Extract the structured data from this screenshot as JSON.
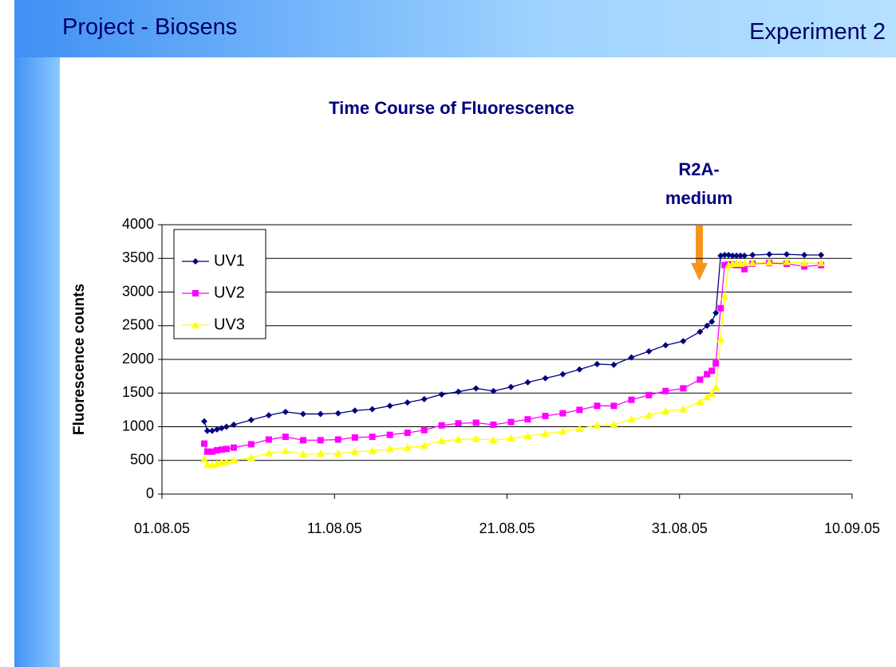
{
  "header": {
    "title": "Project - Biosens",
    "subtitle": "Experiment 2"
  },
  "chart_data": {
    "type": "line",
    "title": "Time Course of Fluorescence",
    "y_label": "Fluorescence counts",
    "annotation": [
      "R2A-",
      "medium"
    ],
    "x": [
      2.45,
      2.63,
      2.91,
      3.19,
      3.46,
      3.74,
      4.16,
      5.17,
      6.19,
      7.16,
      8.18,
      9.19,
      10.21,
      11.18,
      12.19,
      13.21,
      14.23,
      15.2,
      16.21,
      17.18,
      18.2,
      19.21,
      20.23,
      21.2,
      22.22,
      23.23,
      24.2,
      25.22,
      26.19,
      27.21,
      28.22,
      29.19,
      30.21,
      31.18,
      31.59,
      31.87,
      32.1,
      32.38,
      32.61,
      32.84,
      33.07,
      33.3,
      33.53,
      33.76,
      34.23,
      35.2,
      36.21,
      37.23,
      38.2
    ],
    "series": [
      {
        "name": "UV1",
        "color": "#000080",
        "marker": "diamond",
        "values": [
          1080,
          940,
          940,
          960,
          980,
          1000,
          1030,
          1100,
          1170,
          1220,
          1190,
          1190,
          1200,
          1240,
          1260,
          1310,
          1360,
          1410,
          1480,
          1520,
          1570,
          1530,
          1590,
          1660,
          1720,
          1780,
          1850,
          1930,
          1920,
          2030,
          2120,
          2210,
          2270,
          2410,
          2500,
          2560,
          2690,
          3540,
          3550,
          3550,
          3540,
          3540,
          3540,
          3540,
          3550,
          3560,
          3560,
          3550,
          3550
        ]
      },
      {
        "name": "UV2",
        "color": "#ff00ff",
        "marker": "square",
        "values": [
          750,
          630,
          630,
          650,
          660,
          670,
          690,
          740,
          810,
          850,
          800,
          800,
          810,
          840,
          850,
          880,
          910,
          950,
          1020,
          1050,
          1060,
          1030,
          1070,
          1110,
          1160,
          1200,
          1250,
          1310,
          1310,
          1400,
          1470,
          1530,
          1570,
          1700,
          1780,
          1830,
          1940,
          2760,
          3400,
          3410,
          3410,
          3400,
          3400,
          3340,
          3420,
          3430,
          3420,
          3380,
          3400
        ]
      },
      {
        "name": "UV3",
        "color": "#ffff00",
        "marker": "triangle",
        "values": [
          520,
          440,
          430,
          450,
          470,
          480,
          500,
          540,
          610,
          640,
          590,
          600,
          600,
          630,
          640,
          670,
          690,
          720,
          790,
          810,
          820,
          800,
          830,
          860,
          900,
          930,
          970,
          1020,
          1030,
          1110,
          1170,
          1230,
          1260,
          1370,
          1440,
          1490,
          1580,
          2300,
          2930,
          3400,
          3420,
          3430,
          3420,
          3430,
          3430,
          3440,
          3450,
          3430,
          3430
        ]
      }
    ],
    "xlim": [
      0,
      40
    ],
    "xticks": [
      {
        "value": 0,
        "label": "01.08.05"
      },
      {
        "value": 10,
        "label": "11.08.05"
      },
      {
        "value": 20,
        "label": "21.08.05"
      },
      {
        "value": 30,
        "label": "31.08.05"
      },
      {
        "value": 40,
        "label": "10.09.05"
      }
    ],
    "ylim": [
      0,
      4000
    ],
    "yticks": [
      0,
      500,
      1000,
      1500,
      2000,
      2500,
      3000,
      3500,
      4000
    ],
    "grid": true,
    "legend": "upper left"
  }
}
